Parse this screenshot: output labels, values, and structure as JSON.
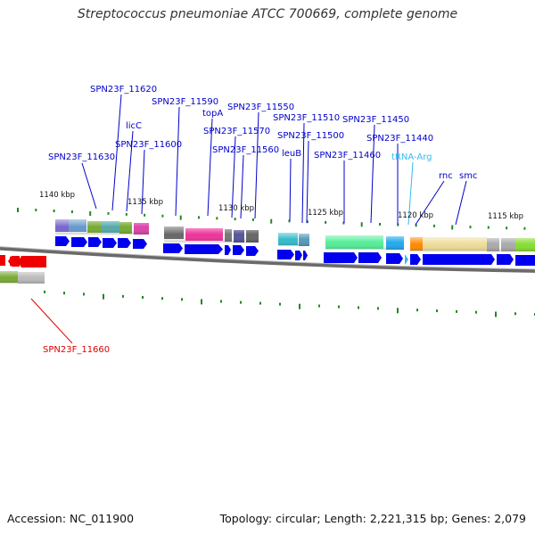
{
  "title": "Streptococcus pneumoniae ATCC 700669, complete genome",
  "footer": {
    "accession": "Accession: NC_011900",
    "topology": "Topology: circular; Length: 2,221,315 bp; Genes: 2,079"
  },
  "scale_labels": [
    "1140 kbp",
    "1135 kbp",
    "1130 kbp",
    "1125 kbp",
    "1120 kbp",
    "1115 kbp"
  ],
  "gene_labels": [
    {
      "text": "SPN23F_11620",
      "color": "#0000cc"
    },
    {
      "text": "SPN23F_11590",
      "color": "#0000cc"
    },
    {
      "text": "licC",
      "color": "#0000cc"
    },
    {
      "text": "SPN23F_11600",
      "color": "#0000cc"
    },
    {
      "text": "SPN23F_11630",
      "color": "#0000cc"
    },
    {
      "text": "topA",
      "color": "#0000cc"
    },
    {
      "text": "SPN23F_11550",
      "color": "#0000cc"
    },
    {
      "text": "SPN23F_11570",
      "color": "#0000cc"
    },
    {
      "text": "SPN23F_11560",
      "color": "#0000cc"
    },
    {
      "text": "SPN23F_11510",
      "color": "#0000cc"
    },
    {
      "text": "SPN23F_11500",
      "color": "#0000cc"
    },
    {
      "text": "leuB",
      "color": "#0000cc"
    },
    {
      "text": "SPN23F_11450",
      "color": "#0000cc"
    },
    {
      "text": "SPN23F_11460",
      "color": "#0000cc"
    },
    {
      "text": "SPN23F_11440",
      "color": "#0000cc"
    },
    {
      "text": "tRNA-Arg",
      "color": "#33bbee"
    },
    {
      "text": "rnc",
      "color": "#0000cc"
    },
    {
      "text": "smc",
      "color": "#0000cc"
    },
    {
      "text": "SPN23F_11660",
      "color": "#dd0000"
    }
  ],
  "colors": {
    "forward_gene": "#0000ee",
    "reverse_gene": "#ee0000",
    "backbone": "#777777",
    "tick": "#228822"
  }
}
